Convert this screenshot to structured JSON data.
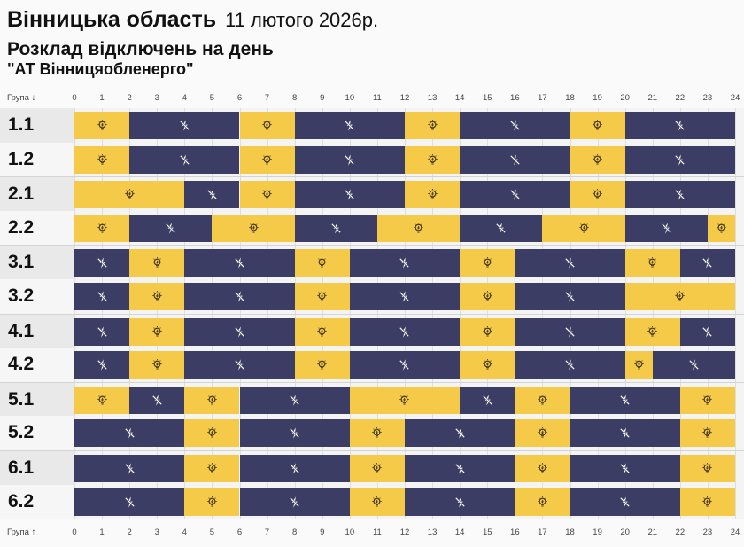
{
  "header": {
    "region": "Вінницька область",
    "date": "11 лютого 2026р.",
    "subtitle": "Розклад відключень на день",
    "company": "\"АТ Вінницяобленерго\""
  },
  "colors": {
    "power_on": "#f5ca48",
    "power_off": "#3b3d64"
  },
  "icons": {
    "on": "lightbulb-icon",
    "off": "power-off-bolt-icon"
  },
  "chart_data": {
    "type": "timeline",
    "xlabel_top": "Група ↓",
    "xlabel_bottom": "Група ↑",
    "xlim": [
      0,
      24
    ],
    "ticks": [
      "0",
      "1",
      "2",
      "3",
      "4",
      "5",
      "6",
      "7",
      "8",
      "9",
      "10",
      "11",
      "12",
      "13",
      "14",
      "15",
      "16",
      "17",
      "18",
      "19",
      "20",
      "21",
      "22",
      "23",
      "24"
    ],
    "groups": [
      {
        "name": "1.1",
        "segments": [
          [
            0,
            2,
            "on"
          ],
          [
            2,
            6,
            "off"
          ],
          [
            6,
            8,
            "on"
          ],
          [
            8,
            12,
            "off"
          ],
          [
            12,
            14,
            "on"
          ],
          [
            14,
            18,
            "off"
          ],
          [
            18,
            20,
            "on"
          ],
          [
            20,
            24,
            "off"
          ]
        ]
      },
      {
        "name": "1.2",
        "segments": [
          [
            0,
            2,
            "on"
          ],
          [
            2,
            6,
            "off"
          ],
          [
            6,
            8,
            "on"
          ],
          [
            8,
            12,
            "off"
          ],
          [
            12,
            14,
            "on"
          ],
          [
            14,
            18,
            "off"
          ],
          [
            18,
            20,
            "on"
          ],
          [
            20,
            24,
            "off"
          ]
        ]
      },
      {
        "name": "2.1",
        "segments": [
          [
            0,
            4,
            "on"
          ],
          [
            4,
            6,
            "off"
          ],
          [
            6,
            8,
            "on"
          ],
          [
            8,
            12,
            "off"
          ],
          [
            12,
            14,
            "on"
          ],
          [
            14,
            18,
            "off"
          ],
          [
            18,
            20,
            "on"
          ],
          [
            20,
            24,
            "off"
          ]
        ]
      },
      {
        "name": "2.2",
        "segments": [
          [
            0,
            2,
            "on"
          ],
          [
            2,
            5,
            "off"
          ],
          [
            5,
            8,
            "on"
          ],
          [
            8,
            11,
            "off"
          ],
          [
            11,
            14,
            "on"
          ],
          [
            14,
            17,
            "off"
          ],
          [
            17,
            20,
            "on"
          ],
          [
            20,
            23,
            "off"
          ],
          [
            23,
            24,
            "on"
          ]
        ]
      },
      {
        "name": "3.1",
        "segments": [
          [
            0,
            2,
            "off"
          ],
          [
            2,
            4,
            "on"
          ],
          [
            4,
            8,
            "off"
          ],
          [
            8,
            10,
            "on"
          ],
          [
            10,
            14,
            "off"
          ],
          [
            14,
            16,
            "on"
          ],
          [
            16,
            20,
            "off"
          ],
          [
            20,
            22,
            "on"
          ],
          [
            22,
            24,
            "off"
          ]
        ]
      },
      {
        "name": "3.2",
        "segments": [
          [
            0,
            2,
            "off"
          ],
          [
            2,
            4,
            "on"
          ],
          [
            4,
            8,
            "off"
          ],
          [
            8,
            10,
            "on"
          ],
          [
            10,
            14,
            "off"
          ],
          [
            14,
            16,
            "on"
          ],
          [
            16,
            20,
            "off"
          ],
          [
            20,
            24,
            "on"
          ]
        ]
      },
      {
        "name": "4.1",
        "segments": [
          [
            0,
            2,
            "off"
          ],
          [
            2,
            4,
            "on"
          ],
          [
            4,
            8,
            "off"
          ],
          [
            8,
            10,
            "on"
          ],
          [
            10,
            14,
            "off"
          ],
          [
            14,
            16,
            "on"
          ],
          [
            16,
            20,
            "off"
          ],
          [
            20,
            22,
            "on"
          ],
          [
            22,
            24,
            "off"
          ]
        ]
      },
      {
        "name": "4.2",
        "segments": [
          [
            0,
            2,
            "off"
          ],
          [
            2,
            4,
            "on"
          ],
          [
            4,
            8,
            "off"
          ],
          [
            8,
            10,
            "on"
          ],
          [
            10,
            14,
            "off"
          ],
          [
            14,
            16,
            "on"
          ],
          [
            16,
            20,
            "off"
          ],
          [
            20,
            21,
            "on"
          ],
          [
            21,
            24,
            "off"
          ]
        ]
      },
      {
        "name": "5.1",
        "segments": [
          [
            0,
            2,
            "on"
          ],
          [
            2,
            4,
            "off"
          ],
          [
            4,
            6,
            "on"
          ],
          [
            6,
            10,
            "off"
          ],
          [
            10,
            14,
            "on"
          ],
          [
            14,
            16,
            "off"
          ],
          [
            16,
            18,
            "on"
          ],
          [
            18,
            22,
            "off"
          ],
          [
            22,
            24,
            "on"
          ]
        ]
      },
      {
        "name": "5.2",
        "segments": [
          [
            0,
            4,
            "off"
          ],
          [
            4,
            6,
            "on"
          ],
          [
            6,
            10,
            "off"
          ],
          [
            10,
            12,
            "on"
          ],
          [
            12,
            16,
            "off"
          ],
          [
            16,
            18,
            "on"
          ],
          [
            18,
            22,
            "off"
          ],
          [
            22,
            24,
            "on"
          ]
        ]
      },
      {
        "name": "6.1",
        "segments": [
          [
            0,
            4,
            "off"
          ],
          [
            4,
            6,
            "on"
          ],
          [
            6,
            10,
            "off"
          ],
          [
            10,
            12,
            "on"
          ],
          [
            12,
            16,
            "off"
          ],
          [
            16,
            18,
            "on"
          ],
          [
            18,
            22,
            "off"
          ],
          [
            22,
            24,
            "on"
          ]
        ]
      },
      {
        "name": "6.2",
        "segments": [
          [
            0,
            4,
            "off"
          ],
          [
            4,
            6,
            "on"
          ],
          [
            6,
            10,
            "off"
          ],
          [
            10,
            12,
            "on"
          ],
          [
            12,
            16,
            "off"
          ],
          [
            16,
            18,
            "on"
          ],
          [
            18,
            22,
            "off"
          ],
          [
            22,
            24,
            "on"
          ]
        ]
      }
    ]
  }
}
